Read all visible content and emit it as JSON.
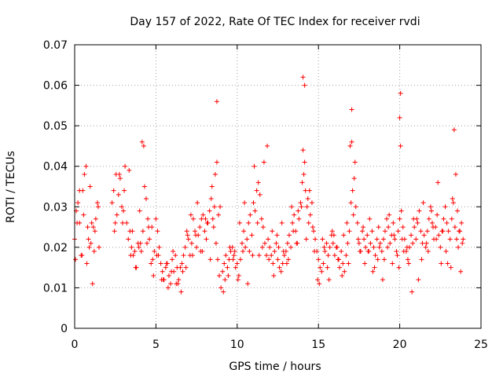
{
  "chart_data": {
    "type": "scatter",
    "title": "Day 157 of 2022, Rate Of TEC Index for receiver rvdi",
    "xlabel": "GPS time / hours",
    "ylabel": "ROTI / TECUs",
    "xlim": [
      0,
      25
    ],
    "ylim": [
      0,
      0.07
    ],
    "xticks": [
      "0",
      "5",
      "10",
      "15",
      "20",
      "25"
    ],
    "yticks": [
      "0",
      "0.01",
      "0.02",
      "0.03",
      "0.04",
      "0.05",
      "0.06",
      "0.07"
    ],
    "grid": true,
    "marker": "plus",
    "color": "#ff0000",
    "series": [
      {
        "x": [
          0.0,
          0.1,
          0.2,
          0.3,
          0.4,
          0.5,
          0.6,
          0.7,
          0.8,
          0.9,
          1.0,
          1.1,
          1.2,
          1.3,
          1.4,
          1.5,
          2.3,
          2.4,
          2.5,
          2.6,
          2.7,
          2.8,
          2.9,
          3.0,
          3.1,
          3.2,
          3.3,
          3.4,
          3.5,
          3.6,
          3.7,
          3.8,
          3.9,
          4.0,
          4.1,
          4.2,
          4.3,
          4.4,
          4.5,
          4.6,
          4.7,
          4.8,
          4.9,
          5.0,
          5.1,
          5.2,
          5.3,
          5.4,
          5.5,
          5.6,
          5.7,
          5.8,
          5.9,
          6.0,
          6.1,
          6.2,
          6.3,
          6.4,
          6.5,
          6.6,
          6.7,
          6.8,
          6.9,
          7.0,
          7.1,
          7.2,
          7.3,
          7.4,
          7.5,
          7.6,
          7.7,
          7.8,
          7.9,
          8.0,
          8.1,
          8.2,
          8.3,
          8.4,
          8.5,
          8.6,
          8.7,
          8.8,
          8.9,
          9.0,
          9.1,
          9.2,
          9.3,
          9.4,
          9.5,
          9.6,
          9.7,
          9.8,
          9.9,
          10.0,
          10.1,
          10.2,
          10.3,
          10.4,
          10.5,
          10.6,
          10.7,
          10.8,
          10.9,
          11.0,
          11.1,
          11.2,
          11.3,
          11.4,
          11.5,
          11.6,
          11.7,
          11.8,
          11.9,
          12.0,
          12.1,
          12.2,
          12.3,
          12.4,
          12.5,
          12.6,
          12.7,
          12.8,
          12.9,
          13.0,
          13.1,
          13.2,
          13.3,
          13.4,
          13.5,
          13.6,
          13.7,
          13.8,
          13.9,
          14.0,
          14.1,
          14.2,
          14.3,
          14.4,
          14.5,
          14.6,
          14.7,
          14.8,
          14.9,
          15.0,
          15.1,
          15.2,
          15.3,
          15.4,
          15.5,
          15.6,
          15.7,
          15.8,
          15.9,
          16.0,
          16.1,
          16.2,
          16.3,
          16.4,
          16.5,
          16.6,
          16.7,
          16.8,
          16.9,
          17.0,
          17.1,
          17.2,
          17.3,
          17.4,
          17.5,
          17.6,
          17.7,
          17.8,
          17.9,
          18.0,
          18.1,
          18.2,
          18.3,
          18.4,
          18.5,
          18.6,
          18.7,
          18.8,
          18.9,
          19.0,
          19.1,
          19.2,
          19.3,
          19.4,
          19.5,
          19.6,
          19.7,
          19.8,
          19.9,
          20.0,
          20.1,
          20.2,
          20.3,
          20.4,
          20.5,
          20.6,
          20.7,
          20.8,
          20.9,
          21.0,
          21.1,
          21.2,
          21.3,
          21.4,
          21.5,
          21.6,
          21.7,
          21.8,
          21.9,
          22.0,
          22.1,
          22.2,
          22.3,
          22.4,
          22.5,
          22.6,
          22.7,
          22.8,
          22.9,
          23.0,
          23.1,
          23.2,
          23.3,
          23.4,
          23.5,
          23.6,
          23.7,
          23.8,
          23.9,
          0.05,
          0.3,
          0.55,
          0.75,
          0.95,
          1.05,
          1.25,
          1.45,
          2.45,
          2.75,
          3.05,
          3.35,
          3.55,
          3.75,
          4.05,
          4.25,
          4.55,
          4.85,
          5.15,
          5.45,
          5.75,
          6.05,
          6.35,
          6.65,
          6.95,
          7.25,
          7.55,
          7.85,
          8.15,
          8.45,
          8.65,
          8.75,
          8.95,
          9.25,
          9.55,
          9.85,
          10.15,
          10.45,
          10.75,
          11.05,
          11.35,
          11.65,
          11.85,
          12.15,
          12.45,
          12.75,
          13.05,
          13.35,
          13.65,
          13.95,
          14.05,
          14.15,
          14.35,
          14.65,
          14.95,
          15.25,
          15.55,
          15.85,
          16.15,
          16.45,
          16.75,
          16.95,
          17.05,
          17.25,
          17.55,
          17.85,
          18.15,
          18.45,
          18.75,
          19.05,
          19.35,
          19.65,
          19.95,
          20.05,
          20.25,
          20.55,
          20.85,
          21.15,
          21.45,
          21.75,
          22.05,
          22.35,
          22.65,
          22.95,
          23.25,
          23.45,
          23.65,
          23.85,
          4.15,
          8.75,
          14.05,
          14.15,
          17.05,
          20.05,
          20.0,
          23.35,
          0.15,
          0.45,
          0.85,
          1.15,
          2.55,
          2.95,
          3.45,
          3.95,
          4.45,
          4.75,
          5.05,
          5.35,
          5.65,
          5.95,
          6.25,
          6.55,
          6.85,
          7.15,
          7.45,
          7.75,
          8.05,
          8.35,
          8.55,
          8.85,
          9.15,
          9.45,
          9.75,
          10.05,
          10.35,
          10.65,
          10.95,
          11.25,
          11.55,
          11.95,
          12.25,
          12.55,
          12.85,
          13.15,
          13.45,
          13.75,
          14.25,
          14.45,
          14.75,
          15.05,
          15.35,
          15.65,
          15.95,
          16.25,
          16.55,
          16.85,
          17.15,
          17.45,
          17.75,
          18.05,
          18.35,
          18.65,
          18.95,
          19.25,
          19.55,
          19.85,
          20.15,
          20.45,
          20.75,
          21.05,
          21.35,
          21.65,
          21.95,
          22.25,
          22.55,
          22.85,
          23.15,
          23.55,
          23.75
        ],
        "y": [
          0.022,
          0.029,
          0.031,
          0.026,
          0.018,
          0.034,
          0.038,
          0.04,
          0.025,
          0.02,
          0.021,
          0.011,
          0.019,
          0.027,
          0.031,
          0.02,
          0.031,
          0.034,
          0.026,
          0.028,
          0.033,
          0.037,
          0.03,
          0.029,
          0.04,
          0.026,
          0.022,
          0.024,
          0.02,
          0.018,
          0.019,
          0.015,
          0.021,
          0.029,
          0.019,
          0.024,
          0.035,
          0.032,
          0.027,
          0.022,
          0.016,
          0.017,
          0.019,
          0.027,
          0.024,
          0.02,
          0.016,
          0.014,
          0.012,
          0.015,
          0.016,
          0.013,
          0.011,
          0.017,
          0.014,
          0.018,
          0.015,
          0.012,
          0.015,
          0.016,
          0.018,
          0.02,
          0.024,
          0.022,
          0.018,
          0.021,
          0.027,
          0.024,
          0.02,
          0.023,
          0.025,
          0.027,
          0.028,
          0.024,
          0.022,
          0.026,
          0.029,
          0.032,
          0.027,
          0.03,
          0.021,
          0.017,
          0.013,
          0.01,
          0.014,
          0.016,
          0.018,
          0.015,
          0.017,
          0.019,
          0.02,
          0.018,
          0.015,
          0.016,
          0.013,
          0.017,
          0.021,
          0.024,
          0.02,
          0.022,
          0.026,
          0.028,
          0.023,
          0.031,
          0.029,
          0.034,
          0.036,
          0.033,
          0.027,
          0.025,
          0.021,
          0.018,
          0.022,
          0.02,
          0.018,
          0.016,
          0.019,
          0.021,
          0.017,
          0.015,
          0.014,
          0.016,
          0.018,
          0.019,
          0.021,
          0.023,
          0.02,
          0.026,
          0.028,
          0.024,
          0.021,
          0.027,
          0.031,
          0.036,
          0.038,
          0.034,
          0.03,
          0.026,
          0.028,
          0.031,
          0.024,
          0.022,
          0.019,
          0.017,
          0.015,
          0.014,
          0.016,
          0.019,
          0.021,
          0.018,
          0.02,
          0.023,
          0.021,
          0.018,
          0.02,
          0.017,
          0.015,
          0.019,
          0.016,
          0.014,
          0.018,
          0.021,
          0.024,
          0.031,
          0.034,
          0.037,
          0.03,
          0.026,
          0.021,
          0.019,
          0.024,
          0.022,
          0.02,
          0.023,
          0.019,
          0.021,
          0.024,
          0.02,
          0.018,
          0.022,
          0.025,
          0.021,
          0.019,
          0.022,
          0.024,
          0.027,
          0.025,
          0.021,
          0.023,
          0.026,
          0.022,
          0.019,
          0.024,
          0.027,
          0.029,
          0.025,
          0.022,
          0.019,
          0.017,
          0.02,
          0.023,
          0.021,
          0.025,
          0.022,
          0.026,
          0.029,
          0.024,
          0.021,
          0.023,
          0.02,
          0.024,
          0.027,
          0.03,
          0.026,
          0.022,
          0.025,
          0.028,
          0.023,
          0.02,
          0.024,
          0.027,
          0.03,
          0.026,
          0.024,
          0.022,
          0.027,
          0.031,
          0.025,
          0.022,
          0.02,
          0.024,
          0.026,
          0.022,
          0.017,
          0.034,
          0.028,
          0.016,
          0.035,
          0.026,
          0.024,
          0.03,
          0.024,
          0.038,
          0.034,
          0.039,
          0.024,
          0.015,
          0.021,
          0.045,
          0.025,
          0.013,
          0.018,
          0.012,
          0.01,
          0.019,
          0.011,
          0.014,
          0.023,
          0.018,
          0.031,
          0.019,
          0.026,
          0.035,
          0.038,
          0.041,
          0.03,
          0.012,
          0.02,
          0.019,
          0.026,
          0.031,
          0.019,
          0.04,
          0.018,
          0.041,
          0.045,
          0.024,
          0.023,
          0.026,
          0.016,
          0.03,
          0.021,
          0.03,
          0.044,
          0.041,
          0.032,
          0.025,
          0.012,
          0.022,
          0.015,
          0.024,
          0.02,
          0.013,
          0.026,
          0.045,
          0.046,
          0.041,
          0.019,
          0.016,
          0.027,
          0.015,
          0.02,
          0.017,
          0.028,
          0.023,
          0.015,
          0.045,
          0.019,
          0.016,
          0.027,
          0.012,
          0.031,
          0.019,
          0.025,
          0.036,
          0.024,
          0.016,
          0.032,
          0.038,
          0.024,
          0.021,
          0.046,
          0.056,
          0.062,
          0.06,
          0.054,
          0.058,
          0.052,
          0.049,
          0.026,
          0.018,
          0.022,
          0.025,
          0.038,
          0.026,
          0.018,
          0.02,
          0.021,
          0.025,
          0.018,
          0.012,
          0.016,
          0.014,
          0.011,
          0.009,
          0.015,
          0.028,
          0.023,
          0.019,
          0.027,
          0.017,
          0.025,
          0.028,
          0.009,
          0.013,
          0.017,
          0.012,
          0.019,
          0.011,
          0.018,
          0.026,
          0.02,
          0.017,
          0.013,
          0.02,
          0.019,
          0.017,
          0.024,
          0.029,
          0.022,
          0.034,
          0.019,
          0.011,
          0.02,
          0.012,
          0.023,
          0.017,
          0.023,
          0.016,
          0.028,
          0.022,
          0.025,
          0.019,
          0.014,
          0.017,
          0.012,
          0.02,
          0.016,
          0.018,
          0.022,
          0.02,
          0.009,
          0.027,
          0.017,
          0.021,
          0.029,
          0.022,
          0.016,
          0.019,
          0.015,
          0.029,
          0.014
        ]
      }
    ]
  }
}
